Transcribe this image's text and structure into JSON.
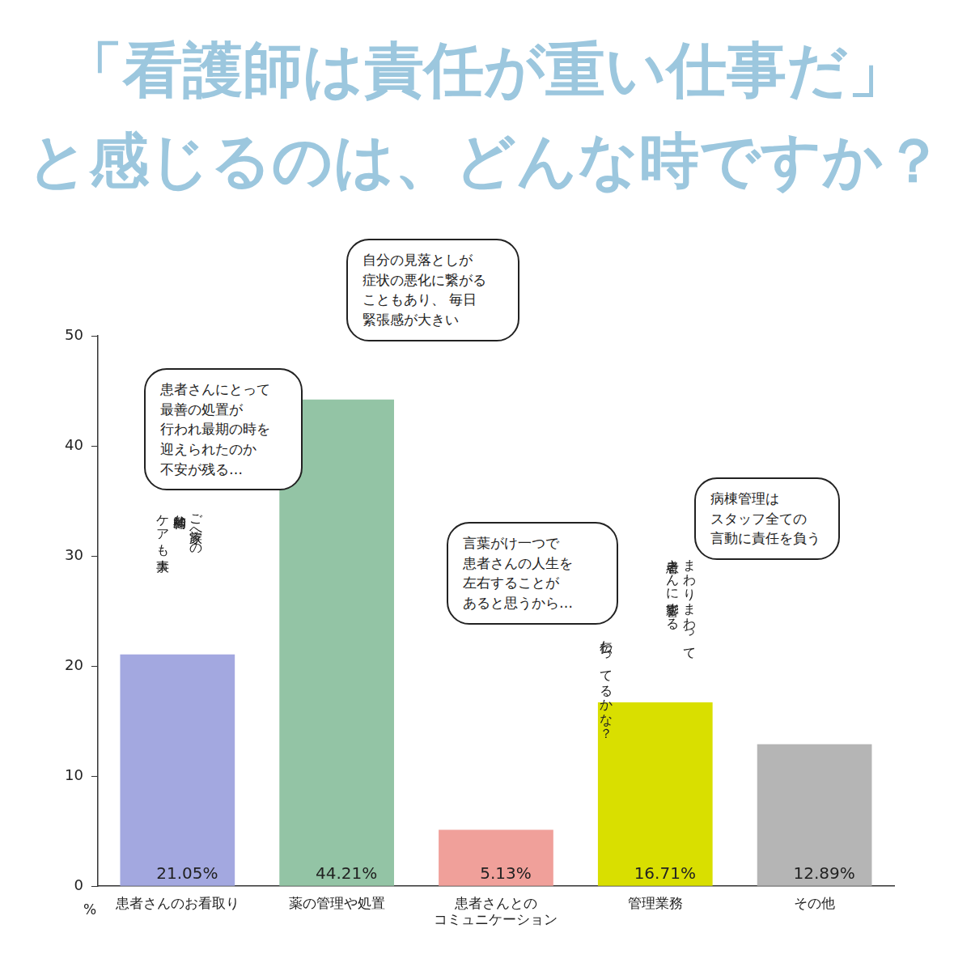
{
  "chart_data": {
    "type": "bar",
    "title": "「看護師は責任が重い仕事だ」\nと感じるのは、どんな時ですか？",
    "categories": [
      "患者さんのお看取り",
      "薬の管理や処置",
      "患者さんとの\nコミュニケーション",
      "管理業務",
      "その他"
    ],
    "values": [
      21.05,
      44.21,
      5.13,
      16.71,
      12.89
    ],
    "value_labels": [
      "21.05%",
      "44.21%",
      "5.13%",
      "16.71%",
      "12.89%"
    ],
    "colors": [
      "#a3a8e0",
      "#93c4a5",
      "#f0a09a",
      "#d9df00",
      "#b5b5b5"
    ],
    "ylim": [
      0,
      50
    ],
    "yticks": [
      0,
      10,
      20,
      30,
      40,
      50
    ],
    "ylabel": "%",
    "grid": false,
    "data_labels": true,
    "annotations": [
      "患者さんにとって\n最善の処置が\n行われ最期の時を\n迎えられたのか\n不安が残る…",
      "自分の見落としが\n症状の悪化に繋がる\nこともあり、 毎日\n緊張感が大きい",
      "言葉がけ一つで\n患者さんの人生を\n左右することが\nあると思うから…",
      "病棟管理は\nスタッフ全ての\n言動に責任を負う",
      "ご家族への\n精神的な\nケアも大事",
      "伝わってるかな？",
      "まわりまわって\n患者さんに影響する"
    ]
  }
}
